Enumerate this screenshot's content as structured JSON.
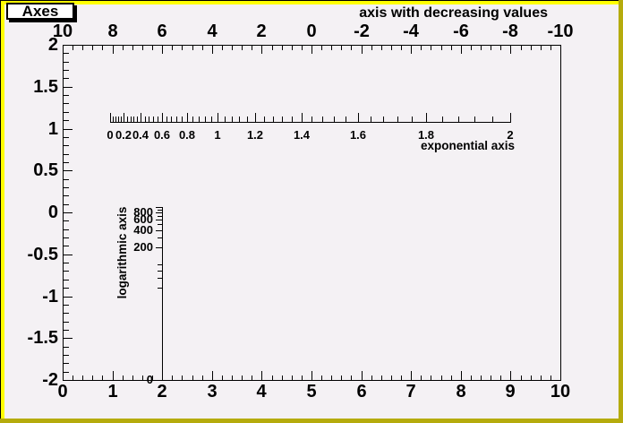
{
  "canvas": {
    "bg_color": "#f4f1f4",
    "border_light_color": "#ffff00",
    "border_dark_color": "#b5ab0c",
    "title_box_label": "Axes"
  },
  "chart_data": {
    "type": "axes_demo",
    "frame_title": "Axes",
    "x_axis": {
      "range": [
        0,
        10
      ],
      "labels": [
        "0",
        "1",
        "2",
        "3",
        "4",
        "5",
        "6",
        "7",
        "8",
        "9",
        "10"
      ],
      "major_step": 1,
      "minor_step": 0.2
    },
    "y_axis": {
      "range": [
        -2,
        2
      ],
      "labels": [
        "2",
        "1.5",
        "1",
        "0.5",
        "0",
        "-0.5",
        "-1",
        "-1.5",
        "-2"
      ],
      "major_step": 0.5,
      "minor_step": 0.1
    },
    "top_axis": {
      "title": "axis with decreasing values",
      "range": [
        10,
        -10
      ],
      "labels": [
        "10",
        "8",
        "6",
        "4",
        "2",
        "0",
        "-2",
        "-4",
        "-6",
        "-8",
        "-10"
      ],
      "major_step": 2,
      "minor_step": 0.4
    },
    "exp_axis": {
      "title": "exponential axis",
      "scale": "exponential",
      "range": [
        0,
        2
      ],
      "labels": [
        "0",
        "0.2",
        "0.4",
        "0.6",
        "0.8",
        "1",
        "1.2",
        "1.4",
        "1.6",
        "1.8",
        "2"
      ],
      "major_step": 0.2,
      "minor_step": 0.04
    },
    "log_axis": {
      "title": "logarithmic axis",
      "scale": "logarithmic",
      "range": [
        1,
        1000
      ],
      "labels": [
        "800",
        "600",
        "400",
        "200",
        "0"
      ],
      "tick_values": [
        1000,
        900,
        800,
        700,
        600,
        500,
        400,
        300,
        200,
        100,
        80,
        60,
        40
      ]
    }
  }
}
